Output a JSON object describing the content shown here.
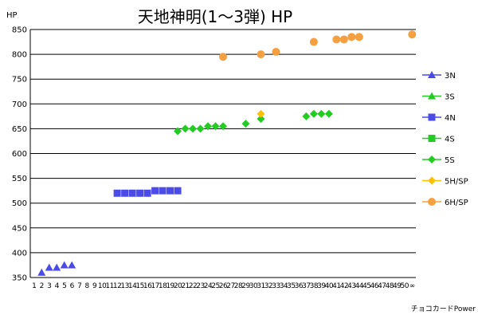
{
  "chart_data": {
    "type": "scatter",
    "title": "天地神明(1～3弾) HP",
    "ylabel": "HP",
    "xlabel": "チョコカードPower",
    "ylim": [
      350,
      850
    ],
    "y_ticks": [
      350,
      400,
      450,
      500,
      550,
      600,
      650,
      700,
      750,
      800,
      850
    ],
    "x_categories": [
      "1",
      "2",
      "3",
      "4",
      "5",
      "6",
      "7",
      "8",
      "9",
      "10",
      "11",
      "12",
      "13",
      "14",
      "15",
      "16",
      "17",
      "18",
      "19",
      "20",
      "21",
      "22",
      "23",
      "24",
      "25",
      "26",
      "27",
      "28",
      "29",
      "30",
      "31",
      "32",
      "33",
      "34",
      "35",
      "36",
      "37",
      "38",
      "39",
      "40",
      "41",
      "42",
      "43",
      "44",
      "45",
      "46",
      "47",
      "48",
      "49",
      "50",
      "∞"
    ],
    "grid": {
      "horizontal": true,
      "vertical": false
    },
    "legend_position": "right",
    "series": [
      {
        "name": "3N",
        "color": "#4B4BE8",
        "marker": "triangle",
        "points": [
          {
            "x": "2",
            "y": 360
          },
          {
            "x": "3",
            "y": 370
          },
          {
            "x": "4",
            "y": 370
          },
          {
            "x": "5",
            "y": 375
          },
          {
            "x": "6",
            "y": 375
          }
        ]
      },
      {
        "name": "3S",
        "color": "#22CC22",
        "marker": "triangle",
        "points": []
      },
      {
        "name": "4N",
        "color": "#4B4BE8",
        "marker": "square",
        "points": [
          {
            "x": "12",
            "y": 520
          },
          {
            "x": "13",
            "y": 520
          },
          {
            "x": "14",
            "y": 520
          },
          {
            "x": "15",
            "y": 520
          },
          {
            "x": "16",
            "y": 520
          },
          {
            "x": "17",
            "y": 525
          },
          {
            "x": "18",
            "y": 525
          },
          {
            "x": "19",
            "y": 525
          },
          {
            "x": "20",
            "y": 525
          }
        ]
      },
      {
        "name": "4S",
        "color": "#22CC22",
        "marker": "square",
        "points": []
      },
      {
        "name": "5S",
        "color": "#22CC22",
        "marker": "diamond",
        "points": [
          {
            "x": "20",
            "y": 645
          },
          {
            "x": "21",
            "y": 650
          },
          {
            "x": "22",
            "y": 650
          },
          {
            "x": "23",
            "y": 650
          },
          {
            "x": "24",
            "y": 655
          },
          {
            "x": "25",
            "y": 655
          },
          {
            "x": "26",
            "y": 655
          },
          {
            "x": "29",
            "y": 660
          },
          {
            "x": "31",
            "y": 670
          },
          {
            "x": "37",
            "y": 675
          },
          {
            "x": "38",
            "y": 680
          },
          {
            "x": "39",
            "y": 680
          },
          {
            "x": "40",
            "y": 680
          }
        ]
      },
      {
        "name": "5H/SP",
        "color": "#FFC000",
        "marker": "diamond",
        "points": [
          {
            "x": "31",
            "y": 680
          }
        ]
      },
      {
        "name": "6H/SP",
        "color": "#F5A040",
        "marker": "circle",
        "points": [
          {
            "x": "26",
            "y": 795
          },
          {
            "x": "31",
            "y": 800
          },
          {
            "x": "33",
            "y": 805
          },
          {
            "x": "38",
            "y": 825
          },
          {
            "x": "41",
            "y": 830
          },
          {
            "x": "42",
            "y": 830
          },
          {
            "x": "43",
            "y": 835
          },
          {
            "x": "44",
            "y": 835
          },
          {
            "x": "∞",
            "y": 840
          }
        ]
      }
    ]
  }
}
